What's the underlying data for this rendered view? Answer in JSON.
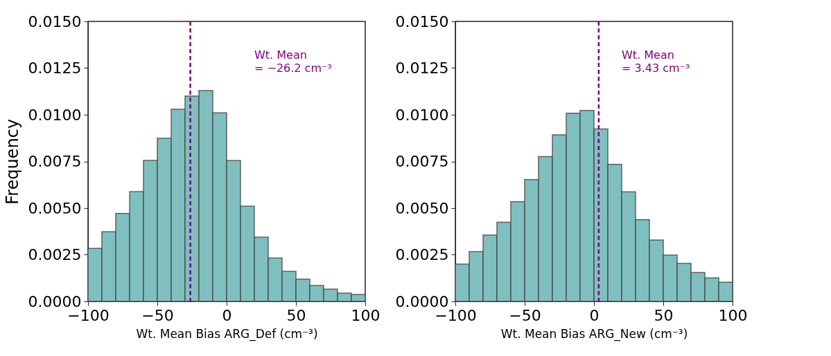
{
  "chart_data": [
    {
      "type": "histogram",
      "xlabel": "Wt. Mean Bias ARG_Def (cm⁻³)",
      "ylabel": "Frequency",
      "bins": [
        -100,
        -90,
        -80,
        -70,
        -60,
        -50,
        -40,
        -30,
        -20,
        -10,
        0,
        10,
        20,
        30,
        40,
        50,
        60,
        70,
        80,
        90,
        100
      ],
      "values": [
        0.00284,
        0.00373,
        0.00471,
        0.00588,
        0.00756,
        0.00874,
        0.0103,
        0.011,
        0.0113,
        0.0101,
        0.00755,
        0.0051,
        0.00344,
        0.00232,
        0.00161,
        0.00119,
        0.00085,
        0.00066,
        0.00044,
        0.00037
      ],
      "color": "#80bfbf",
      "xlim": [
        -100,
        100
      ],
      "xticks": [
        -100,
        -50,
        0,
        50,
        100
      ],
      "ylim": [
        0,
        0.015
      ],
      "yticks": [
        {
          "value": 0,
          "label": "0.0000"
        },
        {
          "value": 0.0025,
          "label": "0.0025"
        },
        {
          "value": 0.005,
          "label": "0.0050"
        },
        {
          "value": 0.0075,
          "label": "0.0075"
        },
        {
          "value": 0.01,
          "label": "0.0100"
        },
        {
          "value": 0.0125,
          "label": "0.0125"
        },
        {
          "value": 0.015,
          "label": "0.0150"
        }
      ],
      "ref_lines": [
        {
          "axis": "x",
          "value": -26.2,
          "label": "Wt. Mean\n = −26.2 cm⁻³",
          "color": "#800080",
          "line_style": "dashed"
        }
      ],
      "grid": false
    },
    {
      "type": "histogram",
      "xlabel": "Wt. Mean Bias ARG_New (cm⁻³)",
      "bins": [
        -100,
        -90,
        -80,
        -70,
        -60,
        -50,
        -40,
        -30,
        -20,
        -10,
        0,
        10,
        20,
        30,
        40,
        50,
        60,
        70,
        80,
        90,
        100
      ],
      "values": [
        0.002,
        0.00267,
        0.00356,
        0.00424,
        0.00534,
        0.00653,
        0.00776,
        0.00893,
        0.01008,
        0.01023,
        0.00924,
        0.00734,
        0.00587,
        0.00438,
        0.00329,
        0.00248,
        0.00204,
        0.00155,
        0.00126,
        0.00103
      ],
      "color": "#80bfbf",
      "xlim": [
        -100,
        100
      ],
      "xticks": [
        -100,
        -50,
        0,
        50,
        100
      ],
      "ylim": [
        0,
        0.015
      ],
      "yticks": [
        {
          "value": 0,
          "label": "0.0000"
        },
        {
          "value": 0.0025,
          "label": "0.0025"
        },
        {
          "value": 0.005,
          "label": "0.0050"
        },
        {
          "value": 0.0075,
          "label": "0.0075"
        },
        {
          "value": 0.01,
          "label": "0.0100"
        },
        {
          "value": 0.0125,
          "label": "0.0125"
        },
        {
          "value": 0.015,
          "label": "0.0150"
        }
      ],
      "ref_lines": [
        {
          "axis": "x",
          "value": 3.43,
          "label": "Wt. Mean\n = 3.43 cm⁻³",
          "color": "#800080",
          "line_style": "dashed"
        }
      ],
      "grid": false
    }
  ]
}
